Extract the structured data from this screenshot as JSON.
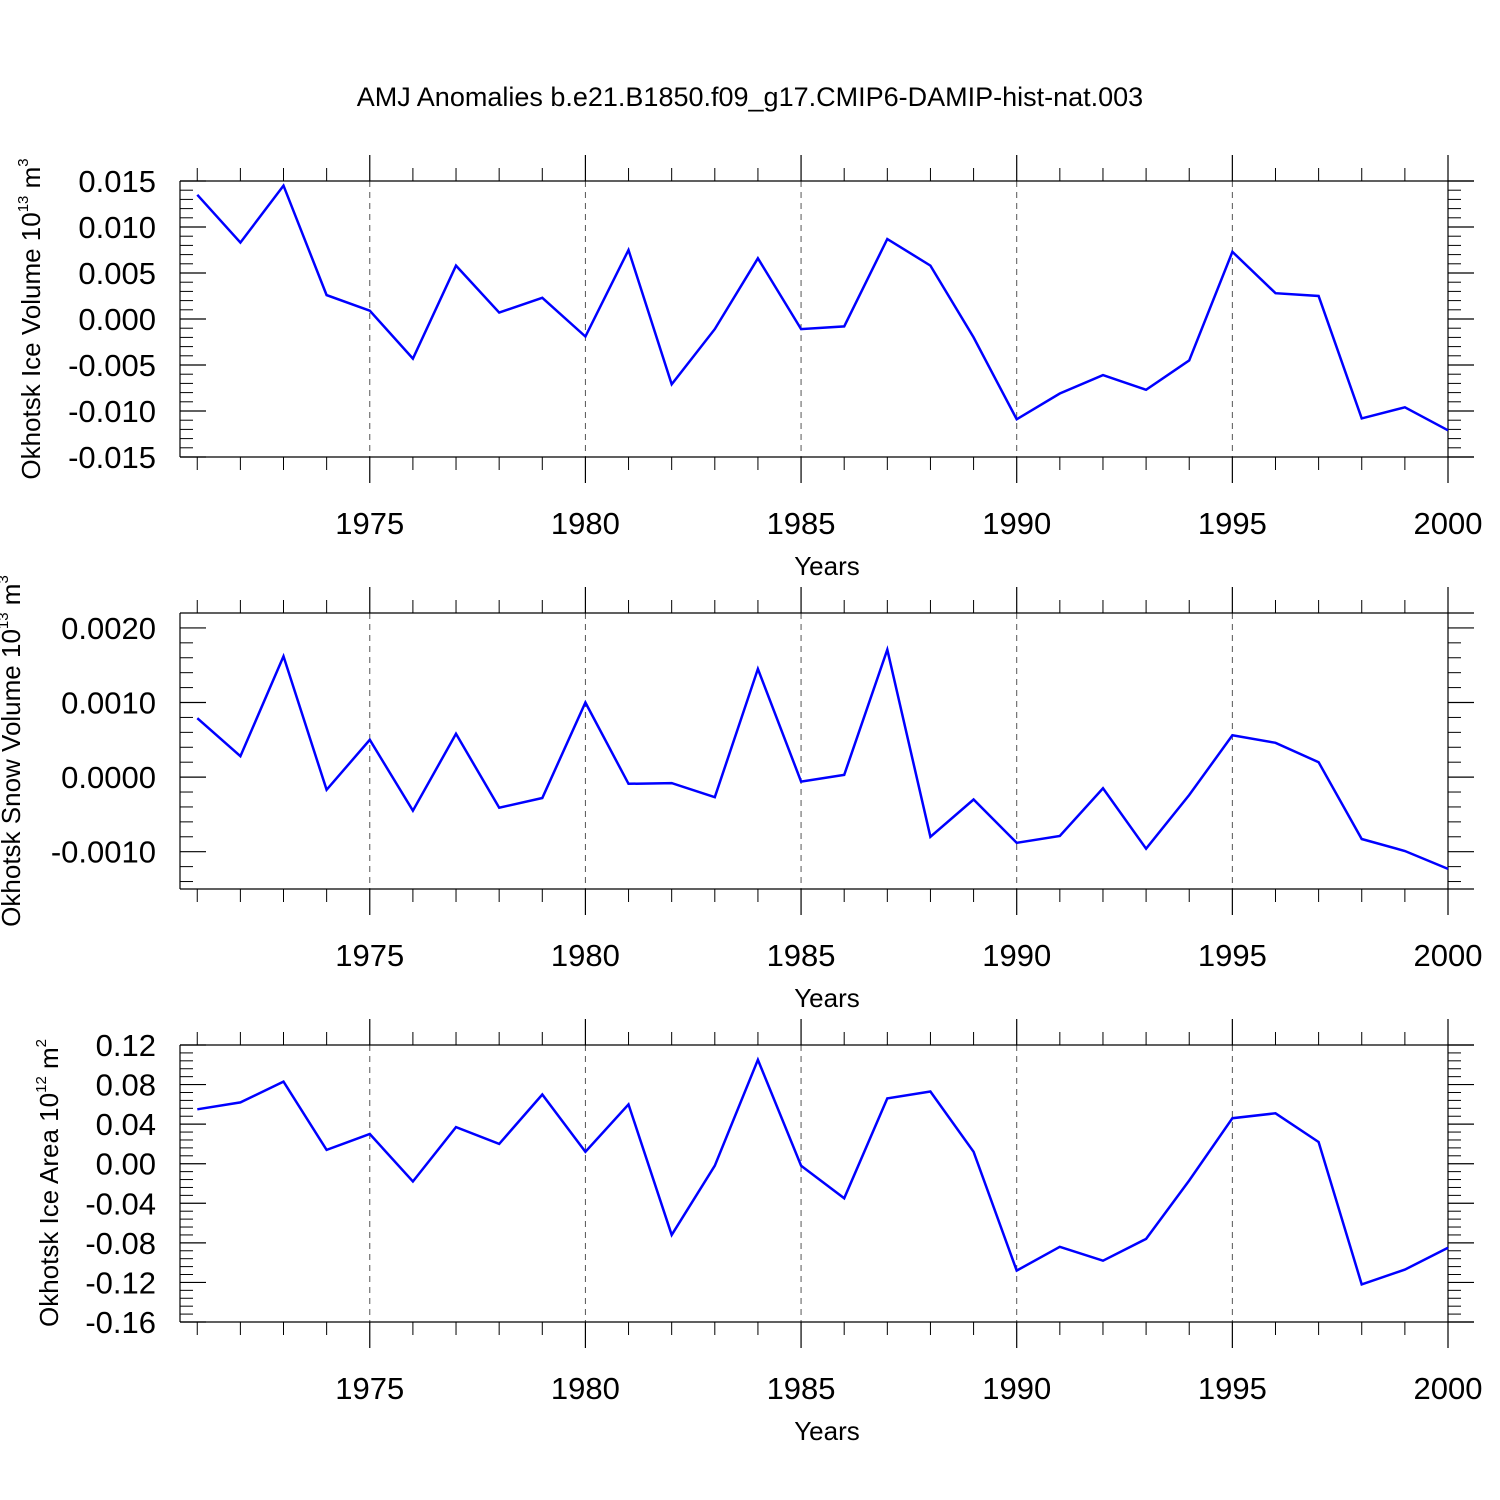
{
  "title": "AMJ Anomalies b.e21.B1850.f09_g17.CMIP6-DAMIP-hist-nat.003",
  "colors": {
    "series": "#0000ff",
    "axes": "#000000",
    "grid": "#555555"
  },
  "chart_data": [
    {
      "type": "line",
      "ylabel": {
        "prefix": "Okhotsk Ice Volume 10",
        "exp": "13",
        "unit": " m",
        "unit_exp": "3"
      },
      "xlabel": "Years",
      "xlim": [
        1970.6,
        2000
      ],
      "ylim": [
        -0.015,
        0.015
      ],
      "y_ticks": [
        "-0.015",
        "-0.010",
        "-0.005",
        "0.000",
        "0.005",
        "0.010",
        "0.015"
      ],
      "y_tick_values": [
        -0.015,
        -0.01,
        -0.005,
        0.0,
        0.005,
        0.01,
        0.015
      ],
      "x_ticks": [
        "1975",
        "1980",
        "1985",
        "1990",
        "1995",
        "2000"
      ],
      "x_tick_values": [
        1975,
        1980,
        1985,
        1990,
        1995,
        2000
      ],
      "grid": "dashed vertical at major x ticks",
      "x": [
        1971,
        1972,
        1973,
        1974,
        1975,
        1976,
        1977,
        1978,
        1979,
        1980,
        1981,
        1982,
        1983,
        1984,
        1985,
        1986,
        1987,
        1988,
        1989,
        1990,
        1991,
        1992,
        1993,
        1994,
        1995,
        1996,
        1997,
        1998,
        1999,
        2000
      ],
      "values": [
        0.0135,
        0.0083,
        0.0145,
        0.0026,
        0.0009,
        -0.0043,
        0.0058,
        0.0007,
        0.0023,
        -0.0019,
        0.0075,
        -0.0071,
        -0.0011,
        0.0066,
        -0.0011,
        -0.0008,
        0.0087,
        0.0058,
        -0.002,
        -0.0109,
        -0.0081,
        -0.0061,
        -0.0077,
        -0.0045,
        0.0073,
        0.0028,
        0.0025,
        -0.0108,
        -0.0096,
        -0.0121
      ]
    },
    {
      "type": "line",
      "ylabel": {
        "prefix": "Okhotsk Snow Volume 10",
        "exp": "13",
        "unit": " m",
        "unit_exp": "3"
      },
      "xlabel": "Years",
      "xlim": [
        1970.6,
        2000
      ],
      "ylim": [
        -0.0015,
        0.0022
      ],
      "y_ticks": [
        "-0.0010",
        "0.0000",
        "0.0010",
        "0.0020"
      ],
      "y_tick_values": [
        -0.001,
        0.0,
        0.001,
        0.002
      ],
      "x_ticks": [
        "1975",
        "1980",
        "1985",
        "1990",
        "1995",
        "2000"
      ],
      "x_tick_values": [
        1975,
        1980,
        1985,
        1990,
        1995,
        2000
      ],
      "grid": "dashed vertical at major x ticks",
      "x": [
        1971,
        1972,
        1973,
        1974,
        1975,
        1976,
        1977,
        1978,
        1979,
        1980,
        1981,
        1982,
        1983,
        1984,
        1985,
        1986,
        1987,
        1988,
        1989,
        1990,
        1991,
        1992,
        1993,
        1994,
        1995,
        1996,
        1997,
        1998,
        1999,
        2000
      ],
      "values": [
        0.00079,
        0.00028,
        0.00162,
        -0.00017,
        0.0005,
        -0.00045,
        0.00058,
        -0.00041,
        -0.00028,
        0.001,
        -9e-05,
        -8e-05,
        -0.00027,
        0.00145,
        -6e-05,
        3e-05,
        0.00171,
        -0.0008,
        -0.0003,
        -0.00088,
        -0.00079,
        -0.00015,
        -0.00096,
        -0.00024,
        0.00056,
        0.00046,
        0.0002,
        -0.00083,
        -0.00099,
        -0.00123
      ]
    },
    {
      "type": "line",
      "ylabel": {
        "prefix": "Okhotsk Ice Area 10",
        "exp": "12",
        "unit": " m",
        "unit_exp": "2"
      },
      "xlabel": "Years",
      "xlim": [
        1970.6,
        2000
      ],
      "ylim": [
        -0.16,
        0.12
      ],
      "y_ticks": [
        "-0.16",
        "-0.12",
        "-0.08",
        "-0.04",
        "0.00",
        "0.04",
        "0.08",
        "0.12"
      ],
      "y_tick_values": [
        -0.16,
        -0.12,
        -0.08,
        -0.04,
        0.0,
        0.04,
        0.08,
        0.12
      ],
      "x_ticks": [
        "1975",
        "1980",
        "1985",
        "1990",
        "1995",
        "2000"
      ],
      "x_tick_values": [
        1975,
        1980,
        1985,
        1990,
        1995,
        2000
      ],
      "grid": "dashed vertical at major x ticks",
      "x": [
        1971,
        1972,
        1973,
        1974,
        1975,
        1976,
        1977,
        1978,
        1979,
        1980,
        1981,
        1982,
        1983,
        1984,
        1985,
        1986,
        1987,
        1988,
        1989,
        1990,
        1991,
        1992,
        1993,
        1994,
        1995,
        1996,
        1997,
        1998,
        1999,
        2000
      ],
      "values": [
        0.055,
        0.062,
        0.083,
        0.014,
        0.03,
        -0.018,
        0.037,
        0.02,
        0.07,
        0.012,
        0.06,
        -0.072,
        -0.002,
        0.105,
        -0.002,
        -0.035,
        0.066,
        0.073,
        0.012,
        -0.108,
        -0.084,
        -0.098,
        -0.076,
        -0.017,
        0.046,
        0.051,
        0.022,
        -0.122,
        -0.107,
        -0.085
      ]
    }
  ]
}
